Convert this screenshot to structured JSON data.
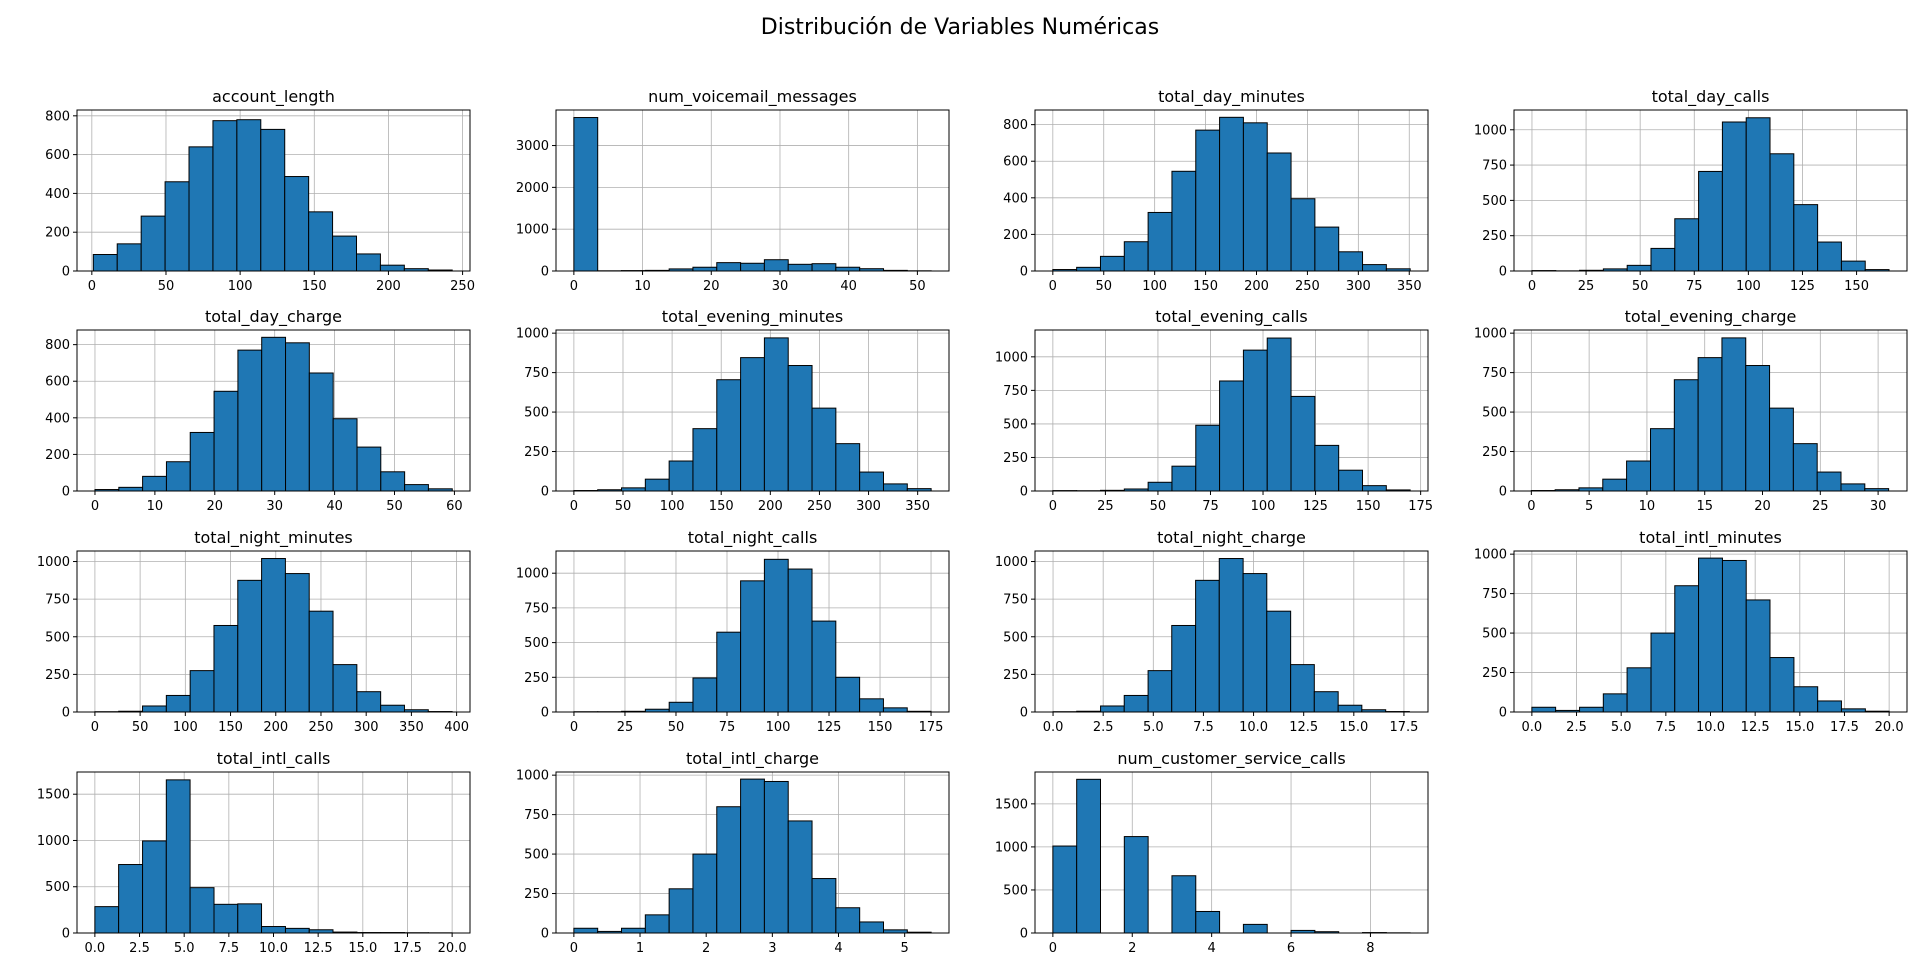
{
  "figure_title": "Distribución de Variables Numéricas",
  "colors": {
    "bar": "#1f77b4",
    "edge": "#000000",
    "grid": "#b0b0b0"
  },
  "chart_data": [
    {
      "type": "bar",
      "title": "account_length",
      "bin_edges": [
        1,
        17.13,
        33.27,
        49.4,
        65.53,
        81.67,
        97.8,
        113.93,
        130.07,
        146.2,
        162.33,
        178.47,
        194.6,
        210.73,
        226.87,
        243
      ],
      "values": [
        85,
        140,
        283,
        460,
        640,
        775,
        780,
        730,
        487,
        305,
        180,
        88,
        30,
        12,
        5
      ],
      "xlim": [
        -10,
        255
      ],
      "ylim": [
        0,
        830
      ],
      "xticks": [
        0,
        50,
        100,
        150,
        200,
        250
      ],
      "xtick_labels": [
        "0",
        "50",
        "100",
        "150",
        "200",
        "250"
      ],
      "yticks": [
        0,
        200,
        400,
        600,
        800
      ],
      "ytick_labels": [
        "0",
        "200",
        "400",
        "600",
        "800"
      ]
    },
    {
      "type": "bar",
      "title": "num_voicemail_messages",
      "bin_edges": [
        0,
        3.47,
        6.93,
        10.4,
        13.87,
        17.33,
        20.8,
        24.27,
        27.73,
        31.2,
        34.67,
        38.13,
        41.6,
        45.07,
        48.53,
        52
      ],
      "values": [
        3670,
        5,
        10,
        15,
        50,
        90,
        200,
        185,
        270,
        160,
        175,
        90,
        55,
        15,
        5
      ],
      "xlim": [
        -2.6,
        54.6
      ],
      "ylim": [
        0,
        3850
      ],
      "xticks": [
        0,
        10,
        20,
        30,
        40,
        50
      ],
      "xtick_labels": [
        "0",
        "10",
        "20",
        "30",
        "40",
        "50"
      ],
      "yticks": [
        0,
        1000,
        2000,
        3000
      ],
      "ytick_labels": [
        "0",
        "1000",
        "2000",
        "3000"
      ]
    },
    {
      "type": "bar",
      "title": "total_day_minutes",
      "bin_edges": [
        0,
        23.39,
        46.79,
        70.18,
        93.57,
        116.97,
        140.36,
        163.75,
        187.15,
        210.54,
        233.93,
        257.33,
        280.72,
        304.11,
        327.51,
        350.9
      ],
      "values": [
        8,
        20,
        80,
        160,
        320,
        545,
        770,
        840,
        810,
        645,
        395,
        240,
        105,
        35,
        12
      ],
      "xlim": [
        -17.5,
        368.4
      ],
      "ylim": [
        0,
        880
      ],
      "xticks": [
        0,
        50,
        100,
        150,
        200,
        250,
        300,
        350
      ],
      "xtick_labels": [
        "0",
        "50",
        "100",
        "150",
        "200",
        "250",
        "300",
        "350"
      ],
      "yticks": [
        0,
        200,
        400,
        600,
        800
      ],
      "ytick_labels": [
        "0",
        "200",
        "400",
        "600",
        "800"
      ]
    },
    {
      "type": "bar",
      "title": "total_day_calls",
      "bin_edges": [
        0,
        11,
        22,
        33,
        44,
        55,
        66,
        77,
        88,
        99,
        110,
        121,
        132,
        143,
        154,
        165
      ],
      "values": [
        3,
        1,
        5,
        15,
        40,
        160,
        370,
        705,
        1055,
        1085,
        830,
        470,
        205,
        70,
        10
      ],
      "xlim": [
        -8.3,
        173.3
      ],
      "ylim": [
        0,
        1140
      ],
      "xticks": [
        0,
        25,
        50,
        75,
        100,
        125,
        150
      ],
      "xtick_labels": [
        "0",
        "25",
        "50",
        "75",
        "100",
        "125",
        "150"
      ],
      "yticks": [
        0,
        250,
        500,
        750,
        1000
      ],
      "ytick_labels": [
        "0",
        "250",
        "500",
        "750",
        "1000"
      ]
    },
    {
      "type": "bar",
      "title": "total_day_charge",
      "bin_edges": [
        0,
        3.98,
        7.95,
        11.93,
        15.9,
        19.88,
        23.86,
        27.83,
        31.81,
        35.78,
        39.76,
        43.74,
        47.71,
        51.69,
        55.66,
        59.64
      ],
      "values": [
        8,
        20,
        80,
        160,
        320,
        545,
        770,
        840,
        810,
        645,
        395,
        240,
        105,
        35,
        12
      ],
      "xlim": [
        -3,
        62.6
      ],
      "ylim": [
        0,
        880
      ],
      "xticks": [
        0,
        10,
        20,
        30,
        40,
        50,
        60
      ],
      "xtick_labels": [
        "0",
        "10",
        "20",
        "30",
        "40",
        "50",
        "60"
      ],
      "yticks": [
        0,
        200,
        400,
        600,
        800
      ],
      "ytick_labels": [
        "0",
        "200",
        "400",
        "600",
        "800"
      ]
    },
    {
      "type": "bar",
      "title": "total_evening_minutes",
      "bin_edges": [
        0,
        24.25,
        48.49,
        72.74,
        96.99,
        121.23,
        145.48,
        169.73,
        193.97,
        218.22,
        242.47,
        266.71,
        290.96,
        315.21,
        339.45,
        363.7
      ],
      "values": [
        3,
        8,
        20,
        75,
        190,
        395,
        705,
        845,
        970,
        795,
        525,
        300,
        120,
        45,
        15
      ],
      "xlim": [
        -18.2,
        381.9
      ],
      "ylim": [
        0,
        1020
      ],
      "xticks": [
        0,
        50,
        100,
        150,
        200,
        250,
        300,
        350
      ],
      "xtick_labels": [
        "0",
        "50",
        "100",
        "150",
        "200",
        "250",
        "300",
        "350"
      ],
      "yticks": [
        0,
        250,
        500,
        750,
        1000
      ],
      "ytick_labels": [
        "0",
        "250",
        "500",
        "750",
        "1000"
      ]
    },
    {
      "type": "bar",
      "title": "total_evening_calls",
      "bin_edges": [
        0,
        11.33,
        22.67,
        34,
        45.33,
        56.67,
        68,
        79.33,
        90.67,
        102,
        113.33,
        124.67,
        136,
        147.33,
        158.67,
        170
      ],
      "values": [
        3,
        2,
        5,
        15,
        65,
        185,
        490,
        820,
        1050,
        1140,
        705,
        340,
        155,
        40,
        8
      ],
      "xlim": [
        -8.5,
        178.5
      ],
      "ylim": [
        0,
        1200
      ],
      "xticks": [
        0,
        25,
        50,
        75,
        100,
        125,
        150,
        175
      ],
      "xtick_labels": [
        "0",
        "25",
        "50",
        "75",
        "100",
        "125",
        "150",
        "175"
      ],
      "yticks": [
        0,
        250,
        500,
        750,
        1000
      ],
      "ytick_labels": [
        "0",
        "250",
        "500",
        "750",
        "1000"
      ]
    },
    {
      "type": "bar",
      "title": "total_evening_charge",
      "bin_edges": [
        0,
        2.06,
        4.12,
        6.18,
        8.24,
        10.31,
        12.37,
        14.43,
        16.49,
        18.55,
        20.61,
        22.67,
        24.73,
        26.79,
        28.85,
        30.91
      ],
      "values": [
        3,
        8,
        20,
        75,
        190,
        395,
        705,
        845,
        970,
        795,
        525,
        300,
        120,
        45,
        15
      ],
      "xlim": [
        -1.5,
        32.5
      ],
      "ylim": [
        0,
        1020
      ],
      "xticks": [
        0,
        5,
        10,
        15,
        20,
        25,
        30
      ],
      "xtick_labels": [
        "0",
        "5",
        "10",
        "15",
        "20",
        "25",
        "30"
      ],
      "yticks": [
        0,
        250,
        500,
        750,
        1000
      ],
      "ytick_labels": [
        "0",
        "250",
        "500",
        "750",
        "1000"
      ]
    },
    {
      "type": "bar",
      "title": "total_night_minutes",
      "bin_edges": [
        0,
        26.33,
        52.67,
        79,
        105.33,
        131.67,
        158,
        184.33,
        210.67,
        237,
        263.33,
        289.67,
        316,
        342.33,
        368.67,
        395
      ],
      "values": [
        2,
        5,
        40,
        110,
        275,
        575,
        875,
        1020,
        920,
        670,
        315,
        135,
        45,
        15,
        3
      ],
      "xlim": [
        -19.8,
        414.8
      ],
      "ylim": [
        0,
        1070
      ],
      "xticks": [
        0,
        50,
        100,
        150,
        200,
        250,
        300,
        350,
        400
      ],
      "xtick_labels": [
        "0",
        "50",
        "100",
        "150",
        "200",
        "250",
        "300",
        "350",
        "400"
      ],
      "yticks": [
        0,
        250,
        500,
        750,
        1000
      ],
      "ytick_labels": [
        "0",
        "250",
        "500",
        "750",
        "1000"
      ]
    },
    {
      "type": "bar",
      "title": "total_night_calls",
      "bin_edges": [
        0,
        11.67,
        23.33,
        35,
        46.67,
        58.33,
        70,
        81.67,
        93.33,
        105,
        116.67,
        128.33,
        140,
        151.67,
        163.33,
        175
      ],
      "values": [
        2,
        2,
        5,
        20,
        70,
        245,
        575,
        945,
        1100,
        1030,
        655,
        250,
        95,
        30,
        5
      ],
      "xlim": [
        -8.8,
        183.8
      ],
      "ylim": [
        0,
        1160
      ],
      "xticks": [
        0,
        25,
        50,
        75,
        100,
        125,
        150,
        175
      ],
      "xtick_labels": [
        "0",
        "25",
        "50",
        "75",
        "100",
        "125",
        "150",
        "175"
      ],
      "yticks": [
        0,
        250,
        500,
        750,
        1000
      ],
      "ytick_labels": [
        "0",
        "250",
        "500",
        "750",
        "1000"
      ]
    },
    {
      "type": "bar",
      "title": "total_night_charge",
      "bin_edges": [
        0,
        1.18,
        2.37,
        3.55,
        4.74,
        5.92,
        7.11,
        8.29,
        9.48,
        10.66,
        11.85,
        13.03,
        14.22,
        15.4,
        16.59,
        17.77
      ],
      "values": [
        2,
        5,
        40,
        110,
        275,
        575,
        875,
        1020,
        920,
        670,
        315,
        135,
        45,
        15,
        3
      ],
      "xlim": [
        -0.9,
        18.7
      ],
      "ylim": [
        0,
        1070
      ],
      "xticks": [
        0,
        2.5,
        5,
        7.5,
        10,
        12.5,
        15,
        17.5
      ],
      "xtick_labels": [
        "0.0",
        "2.5",
        "5.0",
        "7.5",
        "10.0",
        "12.5",
        "15.0",
        "17.5"
      ],
      "yticks": [
        0,
        250,
        500,
        750,
        1000
      ],
      "ytick_labels": [
        "0",
        "250",
        "500",
        "750",
        "1000"
      ]
    },
    {
      "type": "bar",
      "title": "total_intl_minutes",
      "bin_edges": [
        0,
        1.33,
        2.67,
        4,
        5.33,
        6.67,
        8,
        9.33,
        10.67,
        12,
        13.33,
        14.67,
        16,
        17.33,
        18.67,
        20
      ],
      "values": [
        30,
        10,
        30,
        115,
        280,
        500,
        800,
        975,
        960,
        710,
        345,
        160,
        70,
        20,
        5
      ],
      "xlim": [
        -1,
        21
      ],
      "ylim": [
        0,
        1020
      ],
      "xticks": [
        0,
        2.5,
        5,
        7.5,
        10,
        12.5,
        15,
        17.5,
        20
      ],
      "xtick_labels": [
        "0.0",
        "2.5",
        "5.0",
        "7.5",
        "10.0",
        "12.5",
        "15.0",
        "17.5",
        "20.0"
      ],
      "yticks": [
        0,
        250,
        500,
        750,
        1000
      ],
      "ytick_labels": [
        "0",
        "250",
        "500",
        "750",
        "1000"
      ]
    },
    {
      "type": "bar",
      "title": "total_intl_calls",
      "bin_edges": [
        0,
        1.33,
        2.67,
        4,
        5.33,
        6.67,
        8,
        9.33,
        10.67,
        12,
        13.33,
        14.67,
        16,
        17.33,
        18.67,
        20
      ],
      "values": [
        285,
        740,
        995,
        1655,
        490,
        310,
        315,
        70,
        50,
        35,
        10,
        5,
        5,
        3,
        2
      ],
      "xlim": [
        -1,
        21
      ],
      "ylim": [
        0,
        1740
      ],
      "xticks": [
        0,
        2.5,
        5,
        7.5,
        10,
        12.5,
        15,
        17.5,
        20
      ],
      "xtick_labels": [
        "0.0",
        "2.5",
        "5.0",
        "7.5",
        "10.0",
        "12.5",
        "15.0",
        "17.5",
        "20.0"
      ],
      "yticks": [
        0,
        500,
        1000,
        1500
      ],
      "ytick_labels": [
        "0",
        "500",
        "1000",
        "1500"
      ]
    },
    {
      "type": "bar",
      "title": "total_intl_charge",
      "bin_edges": [
        0,
        0.36,
        0.72,
        1.08,
        1.44,
        1.8,
        2.16,
        2.52,
        2.88,
        3.24,
        3.6,
        3.96,
        4.32,
        4.68,
        5.04,
        5.4
      ],
      "values": [
        30,
        10,
        30,
        115,
        280,
        500,
        800,
        975,
        960,
        710,
        345,
        160,
        70,
        20,
        5
      ],
      "xlim": [
        -0.27,
        5.67
      ],
      "ylim": [
        0,
        1020
      ],
      "xticks": [
        0,
        1,
        2,
        3,
        4,
        5
      ],
      "xtick_labels": [
        "0",
        "1",
        "2",
        "3",
        "4",
        "5"
      ],
      "yticks": [
        0,
        250,
        500,
        750,
        1000
      ],
      "ytick_labels": [
        "0",
        "250",
        "500",
        "750",
        "1000"
      ]
    },
    {
      "type": "bar",
      "title": "num_customer_service_calls",
      "bin_edges": [
        0,
        0.6,
        1.2,
        1.8,
        2.4,
        3,
        3.6,
        4.2,
        4.8,
        5.4,
        6,
        6.6,
        7.2,
        7.8,
        8.4,
        9
      ],
      "values": [
        1010,
        1785,
        0,
        1120,
        0,
        665,
        250,
        0,
        100,
        0,
        30,
        15,
        0,
        5,
        2
      ],
      "xlim": [
        -0.45,
        9.45
      ],
      "ylim": [
        0,
        1870
      ],
      "xticks": [
        0,
        2,
        4,
        6,
        8
      ],
      "xtick_labels": [
        "0",
        "2",
        "4",
        "6",
        "8"
      ],
      "yticks": [
        0,
        500,
        1000,
        1500
      ],
      "ytick_labels": [
        "0",
        "500",
        "1000",
        "1500"
      ]
    }
  ]
}
